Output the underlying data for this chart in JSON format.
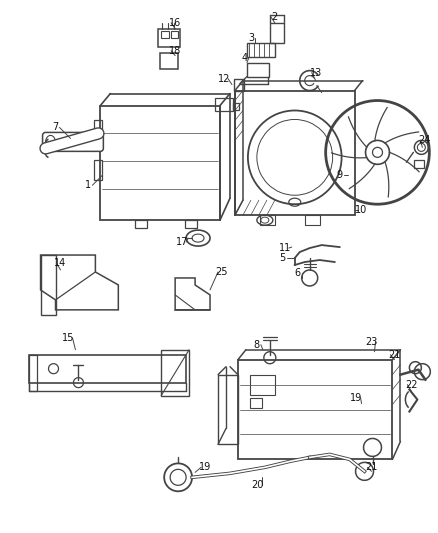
{
  "bg_color": "#ffffff",
  "line_color": "#444444",
  "label_color": "#111111",
  "lw": 1.0,
  "figsize": [
    4.38,
    5.33
  ],
  "dpi": 100
}
